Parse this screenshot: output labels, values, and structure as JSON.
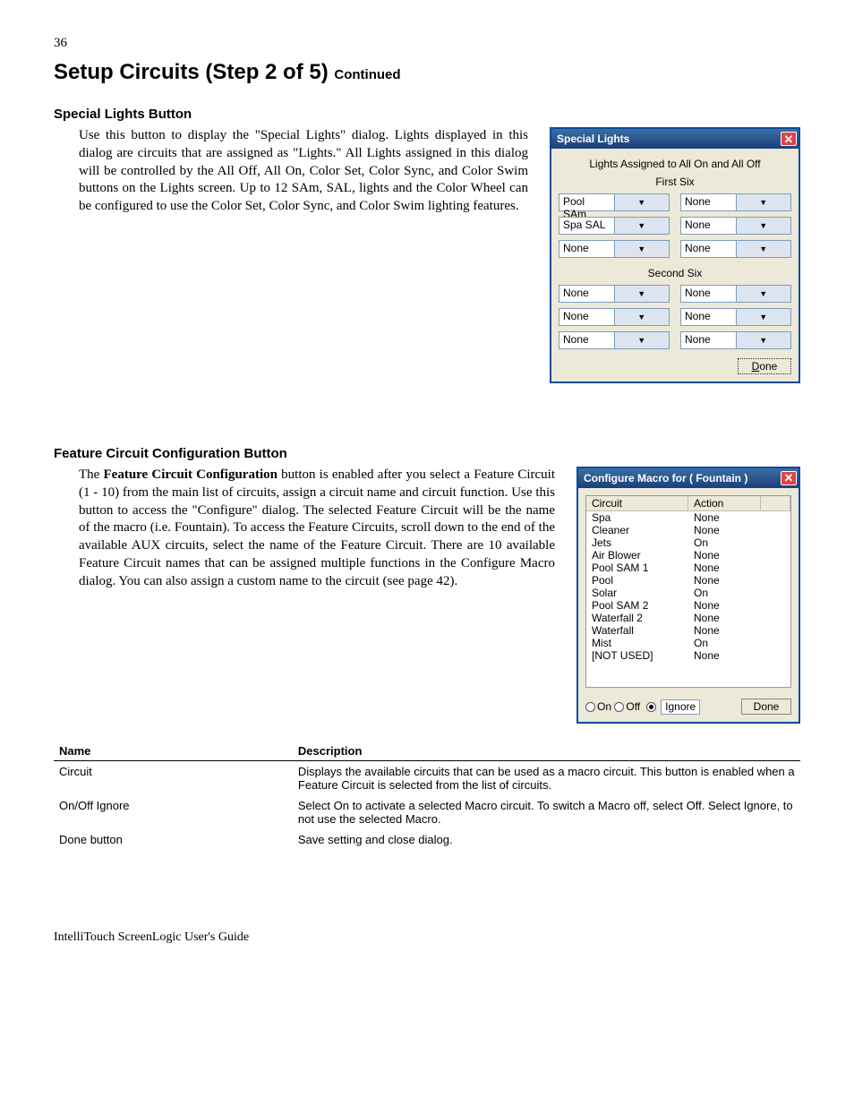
{
  "page_number": "36",
  "title_main": "Setup Circuits (Step 2 of 5) ",
  "title_cont": "Continued",
  "section1": {
    "heading": "Special Lights Button",
    "para": "Use this button to display the \"Special Lights\" dialog. Lights displayed in this dialog are circuits that are assigned as \"Lights.\" All Lights assigned in this dialog will be controlled by the All Off, All On, Color Set, Color Sync, and Color Swim buttons on the Lights screen. Up to 12 SAm, SAL, lights and the Color Wheel can be configured to use the Color Set, Color Sync, and Color Swim lighting features."
  },
  "special_lights_dialog": {
    "title": "Special Lights",
    "caption": "Lights Assigned to All On and All Off",
    "group1_label": "First Six",
    "group2_label": "Second Six",
    "first_six": [
      {
        "l": "Pool SAm",
        "r": "None"
      },
      {
        "l": "Spa SAL",
        "r": "None"
      },
      {
        "l": "None",
        "r": "None"
      }
    ],
    "second_six": [
      {
        "l": "None",
        "r": "None"
      },
      {
        "l": "None",
        "r": "None"
      },
      {
        "l": "None",
        "r": "None"
      }
    ],
    "done_label": "Done"
  },
  "section2": {
    "heading": "Feature Circuit Configuration Button",
    "para_lead_bold": "Feature Circuit Configuration",
    "para_before": "The ",
    "para_after": " button is enabled after you select a Feature Circuit (1 - 10) from the main list of circuits, assign a circuit name and circuit function. Use this button to access the  \"Configure\" dialog. The selected Feature Circuit will be the name of the macro (i.e. Fountain).  To access the Feature Circuits, scroll down to the end of the available AUX circuits, select the name of the Feature Circuit. There are 10 available Feature Circuit names that can be assigned multiple functions in the Configure Macro dialog. You can also assign a custom name to the circuit (see page 42)."
  },
  "macro_dialog": {
    "title": "Configure Macro for ( Fountain )",
    "col_circuit": "Circuit",
    "col_action": "Action",
    "rows": [
      {
        "c": "Spa",
        "a": "None"
      },
      {
        "c": "Cleaner",
        "a": "None"
      },
      {
        "c": "Jets",
        "a": "On"
      },
      {
        "c": "Air Blower",
        "a": "None"
      },
      {
        "c": "Pool SAM 1",
        "a": "None"
      },
      {
        "c": "Pool",
        "a": "None"
      },
      {
        "c": "Solar",
        "a": "On"
      },
      {
        "c": "Pool SAM 2",
        "a": "None"
      },
      {
        "c": "Waterfall 2",
        "a": "None"
      },
      {
        "c": "Waterfall",
        "a": "None"
      },
      {
        "c": "Mist",
        "a": "On"
      },
      {
        "c": "[NOT USED]",
        "a": "None"
      }
    ],
    "radio_on": "On",
    "radio_off": "Off",
    "ignore_value": "Ignore",
    "done_label": "Done"
  },
  "desc_table": {
    "h1": "Name",
    "h2": "Description",
    "rows": [
      {
        "n": "Circuit",
        "d": "Displays the available circuits that can be used as a macro circuit. This button is enabled when a Feature Circuit is selected from the list of circuits."
      },
      {
        "n": "On/Off Ignore",
        "d": "Select On to activate a selected Macro circuit. To switch a Macro off, select Off. Select Ignore, to not use the selected Macro."
      },
      {
        "n": "Done button",
        "d": "Save setting and close dialog."
      }
    ]
  },
  "footer": "IntelliTouch ScreenLogic User's Guide"
}
